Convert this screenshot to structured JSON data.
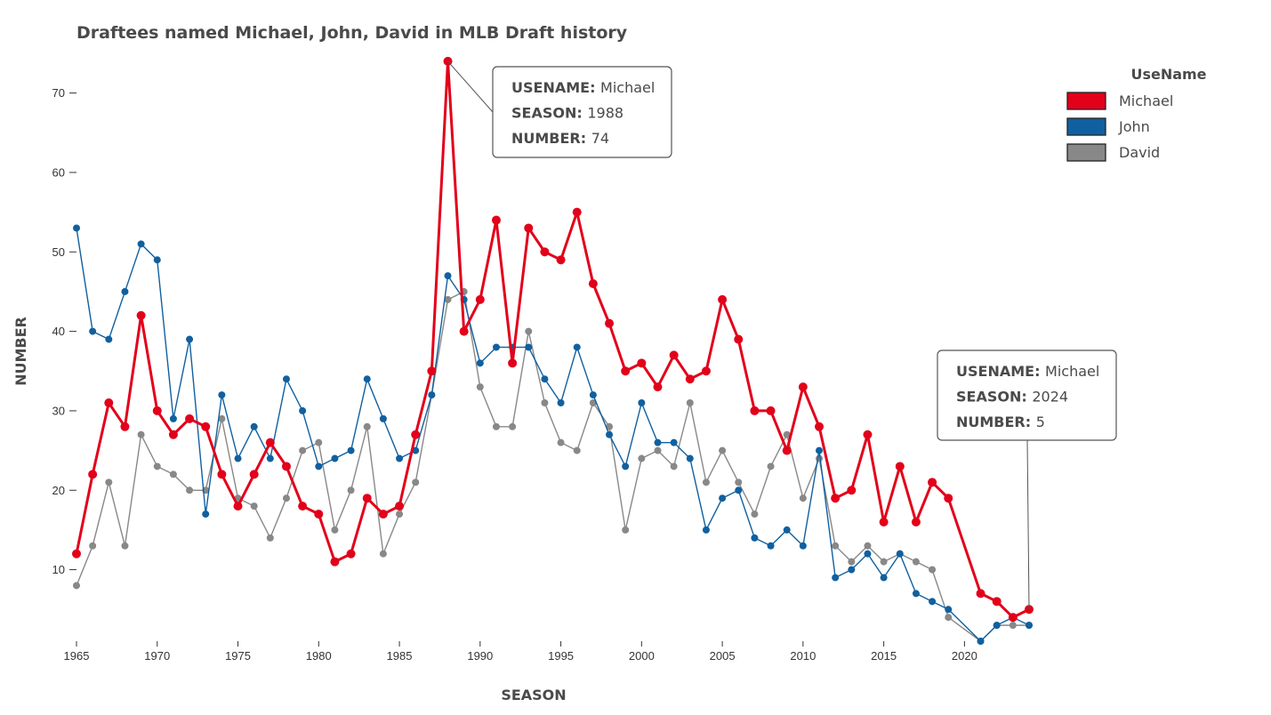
{
  "chart_data": {
    "type": "line",
    "title": "Draftees named Michael, John, David in MLB Draft history",
    "xlabel": "SEASON",
    "ylabel": "NUMBER",
    "xlim": [
      1965,
      2024
    ],
    "ylim": [
      1,
      76
    ],
    "xticks": [
      1965,
      1970,
      1975,
      1980,
      1985,
      1990,
      1995,
      2000,
      2005,
      2010,
      2015,
      2020
    ],
    "yticks": [
      10,
      20,
      30,
      40,
      50,
      60,
      70
    ],
    "grid": false,
    "legend": {
      "title": "UseName",
      "position": "top-right"
    },
    "x": [
      1965,
      1966,
      1967,
      1968,
      1969,
      1970,
      1971,
      1972,
      1973,
      1974,
      1975,
      1976,
      1977,
      1978,
      1979,
      1980,
      1981,
      1982,
      1983,
      1984,
      1985,
      1986,
      1987,
      1988,
      1989,
      1990,
      1991,
      1992,
      1993,
      1994,
      1995,
      1996,
      1997,
      1998,
      1999,
      2000,
      2001,
      2002,
      2003,
      2004,
      2005,
      2006,
      2007,
      2008,
      2009,
      2010,
      2011,
      2012,
      2013,
      2014,
      2015,
      2016,
      2017,
      2018,
      2019,
      2021,
      2022,
      2023,
      2024
    ],
    "series": [
      {
        "name": "David",
        "color": "#888888",
        "values": [
          8,
          13,
          21,
          13,
          27,
          23,
          22,
          20,
          20,
          29,
          19,
          18,
          14,
          19,
          25,
          26,
          15,
          20,
          28,
          12,
          17,
          21,
          32,
          44,
          45,
          33,
          28,
          28,
          40,
          31,
          26,
          25,
          31,
          28,
          15,
          24,
          25,
          23,
          31,
          21,
          25,
          21,
          17,
          23,
          27,
          19,
          24,
          13,
          11,
          13,
          11,
          12,
          11,
          10,
          4,
          1,
          3,
          3,
          3
        ]
      },
      {
        "name": "John",
        "color": "#1060a0",
        "values": [
          53,
          40,
          39,
          45,
          51,
          49,
          29,
          39,
          17,
          32,
          24,
          28,
          24,
          34,
          30,
          23,
          24,
          25,
          34,
          29,
          24,
          25,
          32,
          47,
          44,
          36,
          38,
          38,
          38,
          34,
          31,
          38,
          32,
          27,
          23,
          31,
          26,
          26,
          24,
          15,
          19,
          20,
          14,
          13,
          15,
          13,
          25,
          9,
          10,
          12,
          9,
          12,
          7,
          6,
          5,
          1,
          3,
          4,
          3
        ]
      },
      {
        "name": "Michael",
        "color": "#e2001a",
        "values": [
          12,
          22,
          31,
          28,
          42,
          30,
          27,
          29,
          28,
          22,
          18,
          22,
          26,
          23,
          18,
          17,
          11,
          12,
          19,
          17,
          18,
          27,
          35,
          74,
          40,
          44,
          54,
          36,
          53,
          50,
          49,
          55,
          46,
          41,
          35,
          36,
          33,
          37,
          34,
          35,
          44,
          39,
          30,
          30,
          25,
          33,
          28,
          19,
          20,
          27,
          16,
          23,
          16,
          21,
          19,
          7,
          6,
          4,
          5
        ]
      }
    ],
    "tooltips": [
      {
        "series": "Michael",
        "x": 1988,
        "y": 74,
        "rows": [
          {
            "key": "USENAME:",
            "value": "Michael"
          },
          {
            "key": "SEASON:",
            "value": "1988"
          },
          {
            "key": "NUMBER:",
            "value": "74"
          }
        ]
      },
      {
        "series": "Michael",
        "x": 2024,
        "y": 5,
        "rows": [
          {
            "key": "USENAME:",
            "value": "Michael"
          },
          {
            "key": "SEASON:",
            "value": "2024"
          },
          {
            "key": "NUMBER:",
            "value": "5"
          }
        ]
      }
    ]
  }
}
